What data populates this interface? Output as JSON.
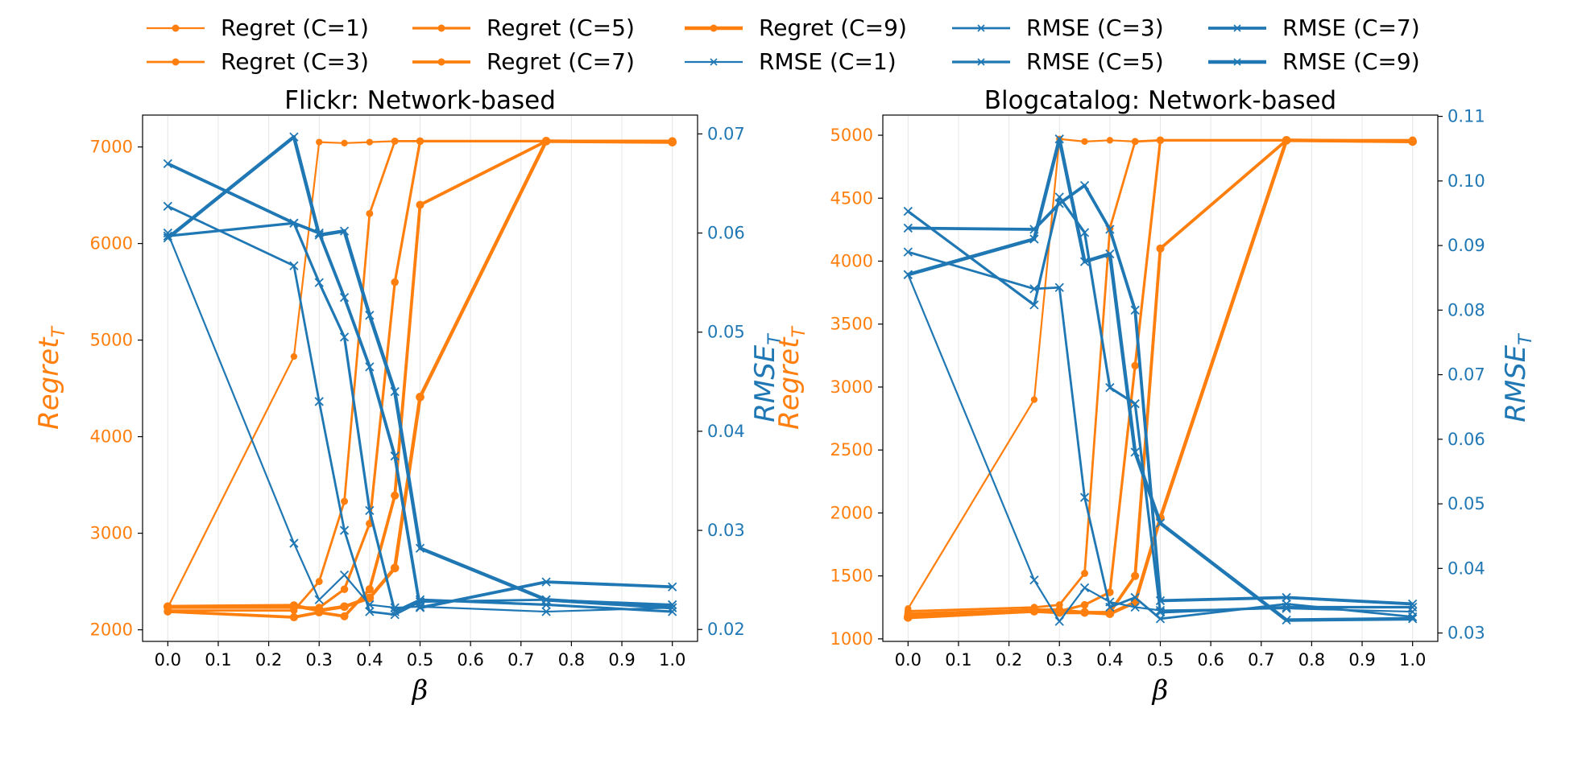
{
  "legend": [
    {
      "label": "Regret (C=1)",
      "kind": "regret",
      "c": 1
    },
    {
      "label": "Regret (C=3)",
      "kind": "regret",
      "c": 3
    },
    {
      "label": "Regret (C=5)",
      "kind": "regret",
      "c": 5
    },
    {
      "label": "Regret (C=7)",
      "kind": "regret",
      "c": 7
    },
    {
      "label": "Regret (C=9)",
      "kind": "regret",
      "c": 9
    },
    {
      "label": "RMSE (C=1)",
      "kind": "rmse",
      "c": 1
    },
    {
      "label": "RMSE (C=3)",
      "kind": "rmse",
      "c": 3
    },
    {
      "label": "RMSE (C=5)",
      "kind": "rmse",
      "c": 5
    },
    {
      "label": "RMSE (C=7)",
      "kind": "rmse",
      "c": 7
    },
    {
      "label": "RMSE (C=9)",
      "kind": "rmse",
      "c": 9
    }
  ],
  "colors": {
    "regret": "#ff7f0e",
    "rmse": "#1f77b4"
  },
  "chart_data": [
    {
      "type": "line",
      "title": "Flickr: Network-based",
      "xlabel": "β",
      "ylabel_left": "Regret_T",
      "ylabel_right": "RMSE_T",
      "x": [
        0.0,
        0.25,
        0.3,
        0.35,
        0.4,
        0.45,
        0.5,
        0.75,
        1.0
      ],
      "xticks": [
        "0.0",
        "0.1",
        "0.2",
        "0.3",
        "0.4",
        "0.5",
        "0.6",
        "0.7",
        "0.8",
        "0.9",
        "1.0"
      ],
      "xlim": [
        -0.05,
        1.05
      ],
      "ylim_left": [
        1880,
        7330
      ],
      "yticks_left": [
        "2000",
        "3000",
        "4000",
        "5000",
        "6000",
        "7000"
      ],
      "ylim_right": [
        0.0188,
        0.0719
      ],
      "yticks_right": [
        "0.02",
        "0.03",
        "0.04",
        "0.05",
        "0.06",
        "0.07"
      ],
      "grid": "vertical",
      "legend": "top",
      "series": [
        {
          "name": "Regret (C=1)",
          "axis": "left",
          "values": [
            2230,
            4830,
            7050,
            7040,
            7050,
            7060,
            7060,
            7060,
            7060
          ]
        },
        {
          "name": "Regret (C=3)",
          "axis": "left",
          "values": [
            2200,
            2200,
            2500,
            3330,
            6310,
            7060,
            7060,
            7060,
            7060
          ]
        },
        {
          "name": "Regret (C=5)",
          "axis": "left",
          "values": [
            2230,
            2230,
            2230,
            2420,
            3100,
            5600,
            7060,
            7060,
            7060
          ]
        },
        {
          "name": "Regret (C=7)",
          "axis": "left",
          "values": [
            2190,
            2130,
            2180,
            2140,
            2420,
            3390,
            6400,
            7060,
            7060
          ]
        },
        {
          "name": "Regret (C=9)",
          "axis": "left",
          "values": [
            2240,
            2250,
            2200,
            2240,
            2330,
            2640,
            4410,
            7060,
            7050
          ]
        },
        {
          "name": "RMSE (C=1)",
          "axis": "right",
          "values": [
            0.06,
            0.0287,
            0.023,
            0.0255,
            0.0225,
            0.0222,
            0.0223,
            0.0218,
            0.0222
          ]
        },
        {
          "name": "RMSE (C=3)",
          "axis": "right",
          "values": [
            0.0627,
            0.0567,
            0.043,
            0.03,
            0.0218,
            0.0215,
            0.0228,
            0.023,
            0.0225
          ]
        },
        {
          "name": "RMSE (C=5)",
          "axis": "right",
          "values": [
            0.0597,
            0.061,
            0.055,
            0.0495,
            0.032,
            0.0218,
            0.023,
            0.0225,
            0.0218
          ]
        },
        {
          "name": "RMSE (C=7)",
          "axis": "right",
          "values": [
            0.067,
            0.061,
            0.06,
            0.0535,
            0.0465,
            0.0375,
            0.0222,
            0.0248,
            0.0243
          ]
        },
        {
          "name": "RMSE (C=9)",
          "axis": "right",
          "values": [
            0.0595,
            0.0697,
            0.0598,
            0.0602,
            0.0517,
            0.044,
            0.0282,
            0.023,
            0.0222
          ]
        }
      ]
    },
    {
      "type": "line",
      "title": "Blogcatalog: Network-based",
      "xlabel": "β",
      "ylabel_left": "Regret_T",
      "ylabel_right": "RMSE_T",
      "x": [
        0.0,
        0.25,
        0.3,
        0.35,
        0.4,
        0.45,
        0.5,
        0.75,
        1.0
      ],
      "xticks": [
        "0.0",
        "0.1",
        "0.2",
        "0.3",
        "0.4",
        "0.5",
        "0.6",
        "0.7",
        "0.8",
        "0.9",
        "1.0"
      ],
      "xlim": [
        -0.05,
        1.05
      ],
      "ylim_left": [
        980,
        5160
      ],
      "yticks_left": [
        "1000",
        "1500",
        "2000",
        "2500",
        "3000",
        "3500",
        "4000",
        "4500",
        "5000"
      ],
      "ylim_right": [
        0.0287,
        0.1102
      ],
      "yticks_right": [
        "0.03",
        "0.04",
        "0.05",
        "0.06",
        "0.07",
        "0.08",
        "0.09",
        "0.10",
        "0.11"
      ],
      "grid": "vertical",
      "legend": "top",
      "series": [
        {
          "name": "Regret (C=1)",
          "axis": "left",
          "values": [
            1240,
            2900,
            4970,
            4950,
            4960,
            4950,
            4960,
            4960,
            4960
          ]
        },
        {
          "name": "Regret (C=3)",
          "axis": "left",
          "values": [
            1220,
            1250,
            1270,
            1520,
            4260,
            4950,
            4960,
            4960,
            4960
          ]
        },
        {
          "name": "Regret (C=5)",
          "axis": "left",
          "values": [
            1200,
            1230,
            1220,
            1270,
            1370,
            3170,
            4960,
            4960,
            4960
          ]
        },
        {
          "name": "Regret (C=7)",
          "axis": "left",
          "values": [
            1180,
            1230,
            1230,
            1210,
            1210,
            1500,
            4100,
            4960,
            4950
          ]
        },
        {
          "name": "Regret (C=9)",
          "axis": "left",
          "values": [
            1170,
            1220,
            1210,
            1210,
            1200,
            1290,
            1960,
            4960,
            4950
          ]
        },
        {
          "name": "RMSE (C=1)",
          "axis": "right",
          "values": [
            0.0855,
            0.0382,
            0.0318,
            0.037,
            0.0348,
            0.034,
            0.0335,
            0.0338,
            0.0333
          ]
        },
        {
          "name": "RMSE (C=3)",
          "axis": "right",
          "values": [
            0.089,
            0.0833,
            0.0835,
            0.051,
            0.034,
            0.0355,
            0.0322,
            0.0345,
            0.0325
          ]
        },
        {
          "name": "RMSE (C=5)",
          "axis": "right",
          "values": [
            0.0953,
            0.0808,
            0.0975,
            0.092,
            0.068,
            0.0655,
            0.0332,
            0.034,
            0.034
          ]
        },
        {
          "name": "RMSE (C=7)",
          "axis": "right",
          "values": [
            0.0927,
            0.0925,
            0.0965,
            0.0993,
            0.0925,
            0.08,
            0.035,
            0.0355,
            0.0345
          ]
        },
        {
          "name": "RMSE (C=9)",
          "axis": "right",
          "values": [
            0.0855,
            0.091,
            0.1065,
            0.0875,
            0.0887,
            0.058,
            0.047,
            0.032,
            0.0322
          ]
        }
      ]
    }
  ]
}
